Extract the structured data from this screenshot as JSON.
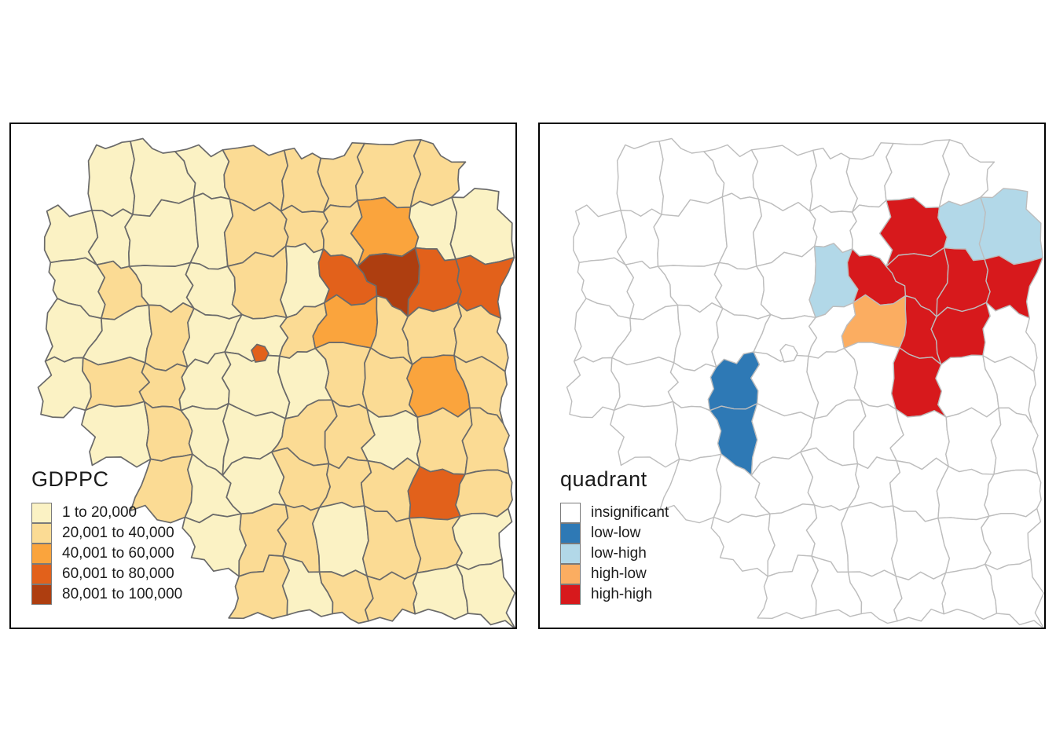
{
  "figure": {
    "background": "#ffffff",
    "panel_border_color": "#000000"
  },
  "panels": [
    {
      "id": "gdppc",
      "legend": {
        "title": "GDPPC",
        "items": [
          {
            "key": "1",
            "label": "1 to 20,000",
            "color": "#FBF2C4"
          },
          {
            "key": "2",
            "label": "20,001 to 40,000",
            "color": "#FBDB94"
          },
          {
            "key": "3",
            "label": "40,001 to 60,000",
            "color": "#FAA43D"
          },
          {
            "key": "4",
            "label": "60,001 to 80,000",
            "color": "#E2611B"
          },
          {
            "key": "5",
            "label": "80,001 to 100,000",
            "color": "#AE3E10"
          }
        ]
      },
      "map": {
        "border_color": "#6A6A6A",
        "border_width": 1.7,
        "rows": [
          ".11122222.",
          "1111222311",
          "1211214544",
          "1121123222",
          "1221112232",
          ".121122122",
          "..21122242",
          "...1221221",
          "....212211"
        ],
        "special_region_key": "4"
      }
    },
    {
      "id": "quadrant",
      "legend": {
        "title": "quadrant",
        "items": [
          {
            "key": "i",
            "label": "insignificant",
            "color": "#FFFFFF"
          },
          {
            "key": "B",
            "label": "low-low",
            "color": "#2E79B5"
          },
          {
            "key": "b",
            "label": "low-high",
            "color": "#B2D8E8"
          },
          {
            "key": "o",
            "label": "high-low",
            "color": "#FBAD61"
          },
          {
            "key": "R",
            "label": "high-high",
            "color": "#D7191C"
          }
        ]
      },
      "map": {
        "border_color": "#BDBDBD",
        "border_width": 1.4,
        "rows": [
          ".iiiiiiii.",
          "iiiiiiiRbb",
          "iiiiibRRRR",
          "iiiiiioRRi",
          "iiiBiiiRii",
          ".iiBiiiiii",
          "..iiiiiiii",
          "...iiiiiii",
          "....iiiiii"
        ],
        "special_region_key": "i"
      }
    }
  ]
}
